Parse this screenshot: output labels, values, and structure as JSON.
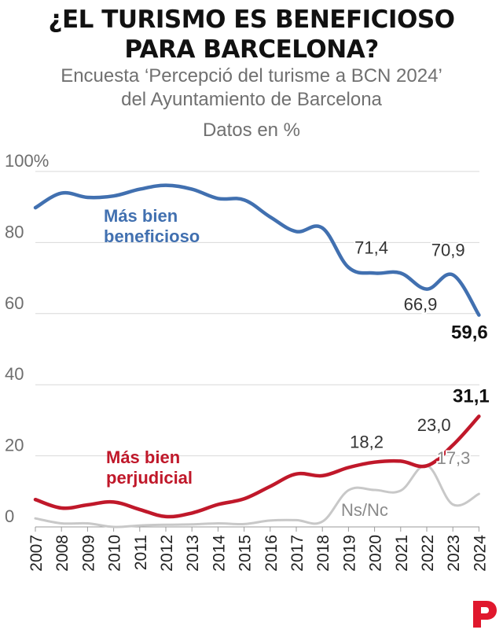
{
  "header": {
    "title_line1": "¿EL TURISMO ES BENEFICIOSO",
    "title_line2": "PARA BARCELONA?",
    "subtitle_line1": "Encuesta ‘Percepció del turisme a BCN 2024’",
    "subtitle_line2": "del Ayuntamiento de Barcelona",
    "units": "Datos en %"
  },
  "colors": {
    "beneficioso": "#4170b0",
    "perjudicial": "#c0182a",
    "nsnc": "#c8c8c8",
    "grid": "#d9d9d9",
    "axis_text": "#6e6e6e",
    "label_text": "#333333",
    "logo": "#e0182d"
  },
  "chart_data": {
    "type": "line",
    "title": "¿EL TURISMO ES BENEFICIOSO PARA BARCELONA?",
    "subtitle": "Encuesta ‘Percepció del turisme a BCN 2024’ del Ayuntamiento de Barcelona",
    "ylabel": "Datos en %",
    "ylim": [
      0,
      100
    ],
    "yticks": [
      0,
      20,
      40,
      60,
      80,
      100
    ],
    "ytick_labels": [
      "0",
      "20",
      "40",
      "60",
      "80",
      "100%"
    ],
    "x": [
      "2007",
      "2008",
      "2009",
      "2010",
      "2011",
      "2012",
      "2013",
      "2014",
      "2015",
      "2016",
      "2017",
      "2018",
      "2019",
      "2020",
      "2021",
      "2022",
      "2023",
      "2024"
    ],
    "series": [
      {
        "name": "Más bien beneficioso",
        "label_lines": [
          "Más bien",
          "beneficioso"
        ],
        "color_key": "beneficioso",
        "values": [
          89.8,
          93.9,
          92.7,
          93.1,
          95.0,
          96.1,
          95.0,
          92.4,
          92.0,
          87.2,
          83.1,
          84.1,
          73.0,
          71.4,
          71.4,
          66.9,
          70.9,
          59.6
        ]
      },
      {
        "name": "Más bien perjudicial",
        "label_lines": [
          "Más bien",
          "perjudicial"
        ],
        "color_key": "perjudicial",
        "values": [
          7.7,
          5.3,
          6.2,
          7.0,
          4.9,
          2.9,
          3.9,
          6.3,
          7.9,
          11.4,
          14.9,
          14.4,
          16.7,
          18.2,
          18.5,
          17.2,
          23.0,
          31.1
        ]
      },
      {
        "name": "Ns/Nc",
        "label_lines": [
          "Ns/Nc"
        ],
        "color_key": "nsnc",
        "values": [
          2.4,
          1.0,
          1.0,
          0.0,
          0.4,
          0.6,
          0.7,
          1.0,
          0.8,
          1.8,
          1.9,
          1.5,
          10.3,
          10.4,
          10.2,
          17.3,
          6.3,
          9.3
        ]
      }
    ],
    "annotations": [
      {
        "series": 0,
        "year": "2020",
        "text": "71,4",
        "bold": false
      },
      {
        "series": 0,
        "year": "2022",
        "text": "66,9",
        "bold": false
      },
      {
        "series": 0,
        "year": "2023",
        "text": "70,9",
        "bold": false
      },
      {
        "series": 0,
        "year": "2024",
        "text": "59,6",
        "bold": true
      },
      {
        "series": 1,
        "year": "2020",
        "text": "18,2",
        "bold": false
      },
      {
        "series": 1,
        "year": "2023",
        "text": "23,0",
        "bold": false
      },
      {
        "series": 1,
        "year": "2024",
        "text": "31,1",
        "bold": true
      },
      {
        "series": 2,
        "year": "2022",
        "text": "17,3",
        "bold": false
      }
    ]
  }
}
